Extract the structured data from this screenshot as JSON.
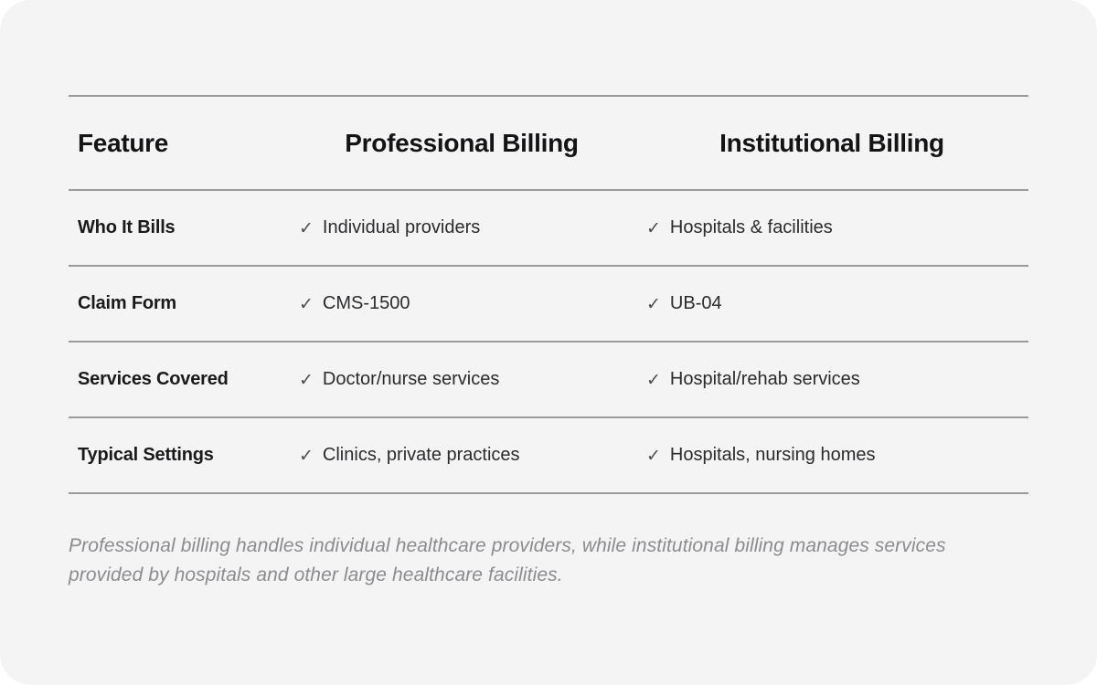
{
  "table": {
    "columns": [
      {
        "label": "Feature"
      },
      {
        "label": "Professional Billing"
      },
      {
        "label": "Institutional Billing"
      }
    ],
    "rows": [
      {
        "feature": "Who It Bills",
        "professional": "Individual providers",
        "institutional": "Hospitals & facilities"
      },
      {
        "feature": "Claim Form",
        "professional": "CMS-1500",
        "institutional": "UB-04"
      },
      {
        "feature": "Services Covered",
        "professional": "Doctor/nurse services",
        "institutional": "Hospital/rehab services"
      },
      {
        "feature": "Typical Settings",
        "professional": "Clinics, private practices",
        "institutional": "Hospitals, nursing homes"
      }
    ]
  },
  "icons": {
    "check": "✓"
  },
  "footnote": "Professional billing handles individual healthcare providers, while institutional billing manages services provided by hospitals and other large healthcare facilities.",
  "colors": {
    "page_background": "#ffffff",
    "card_background": "#f4f4f5",
    "divider": "#9a9a9a",
    "heading_text": "#141416",
    "label_text": "#1a1a1c",
    "value_text": "#2b2b2e",
    "check": "#4b4b52",
    "footnote_text": "#8b8b90"
  }
}
